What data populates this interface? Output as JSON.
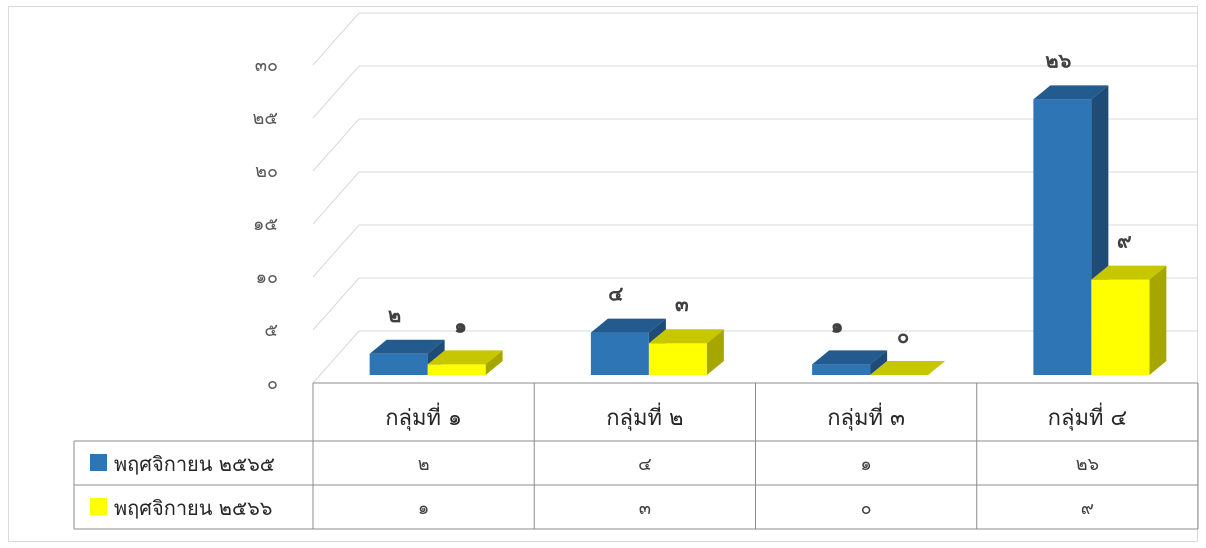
{
  "chart_data": {
    "type": "bar",
    "style": "3d-clustered-column-with-data-table",
    "categories": [
      "กลุ่มที่ ๑",
      "กลุ่มที่ ๒",
      "กลุ่มที่ ๓",
      "กลุ่มที่ ๔"
    ],
    "series": [
      {
        "name": "พฤศจิกายน ๒๕๖๕",
        "color": "#2e75b6",
        "values": [
          2,
          4,
          1,
          26
        ],
        "labels": [
          "๒",
          "๔",
          "๑",
          "๒๖"
        ]
      },
      {
        "name": "พฤศจิกายน ๒๕๖๖",
        "color": "#ffff00",
        "values": [
          1,
          3,
          0,
          9
        ],
        "labels": [
          "๑",
          "๓",
          "๐",
          "๙"
        ]
      }
    ],
    "ylim": [
      0,
      30
    ],
    "yticks": [
      0,
      5,
      10,
      15,
      20,
      25,
      30
    ],
    "ytick_labels": [
      "๐",
      "๕",
      "๑๐",
      "๑๕",
      "๒๐",
      "๒๕",
      "๓๐"
    ],
    "grid": true,
    "legend": "data-table-left",
    "title": "",
    "xlabel": "",
    "ylabel": ""
  }
}
